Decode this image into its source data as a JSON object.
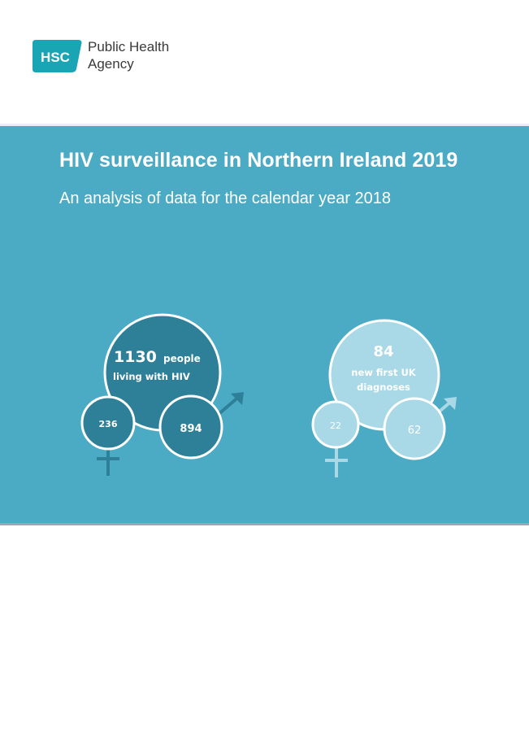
{
  "header": {
    "logo": {
      "mark_text": "HSC",
      "org_line1": "Public Health",
      "org_line2": "Agency"
    }
  },
  "cover": {
    "title": "HIV surveillance in Northern Ireland 2019",
    "subtitle": "An analysis of data for the calendar year 2018"
  },
  "infographic": {
    "living": {
      "total": "1130",
      "total_label_line1": "people",
      "total_label_line2": "living with HIV",
      "female": "236",
      "male": "894"
    },
    "new_diagnoses": {
      "total": "84",
      "total_label_line1": "new first UK",
      "total_label_line2": "diagnoses",
      "female": "22",
      "male": "62"
    }
  },
  "colors": {
    "banner": "#4babc4",
    "dark_circle": "#2e7f98",
    "light_circle": "#a9d8e6",
    "logo_teal": "#1aa5b5"
  }
}
